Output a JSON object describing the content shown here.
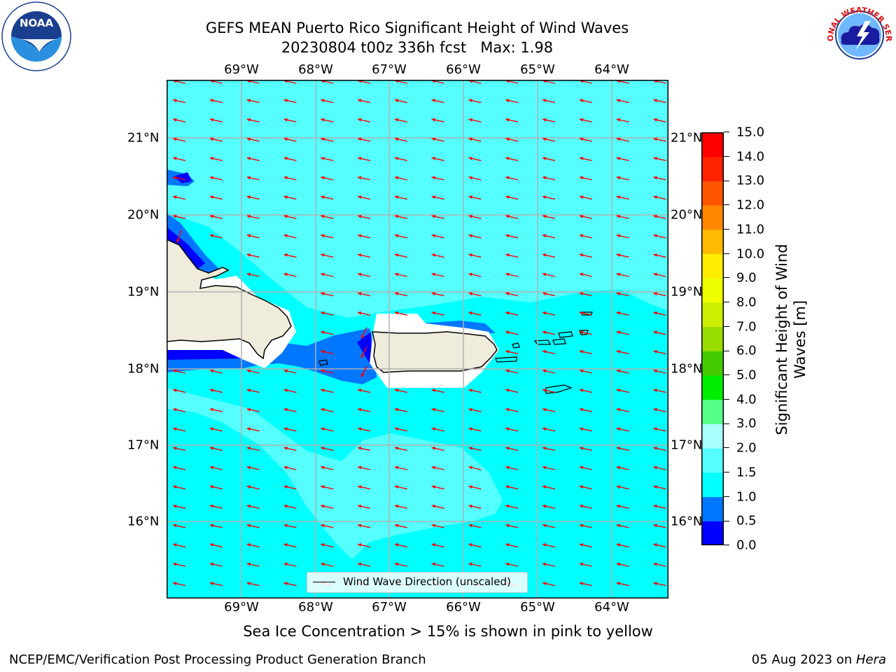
{
  "title": {
    "line1": "GEFS MEAN Puerto Rico Significant Height of Wind Waves",
    "line2": "20230804 t00z 336h fcst   Max: 1.98"
  },
  "logos": {
    "left": {
      "icon": "noaa-logo",
      "text": "NOAA"
    },
    "right": {
      "icon": "national-weather-service-logo",
      "text": "NATIONAL WEATHER SERVICE"
    }
  },
  "map": {
    "lon_ticks": [
      "69°W",
      "68°W",
      "67°W",
      "66°W",
      "65°W",
      "64°W"
    ],
    "lat_ticks": [
      "21°N",
      "20°N",
      "19°N",
      "18°N",
      "17°N",
      "16°N"
    ],
    "ocean_color": "#00ffff",
    "land_color": "#efecdc",
    "arrow_color": "#ff0000",
    "legend_label": "Wind Wave Direction (unscaled)"
  },
  "colorbar": {
    "label": "Significant Height of Wind Waves [m]",
    "label_line1": "Significant Height of Wind",
    "label_line2": "Waves [m]",
    "ticks": [
      "0.0",
      "0.5",
      "1.0",
      "1.5",
      "2.0",
      "3.0",
      "4.0",
      "5.0",
      "6.0",
      "7.0",
      "8.0",
      "9.0",
      "10.0",
      "11.0",
      "12.0",
      "13.0",
      "14.0",
      "15.0"
    ],
    "colors": [
      "#0000ff",
      "#0077ff",
      "#00ffff",
      "#55ffff",
      "#aaffff",
      "#55ff88",
      "#00ee00",
      "#44cc00",
      "#99dd00",
      "#ccee00",
      "#eeff00",
      "#ffee00",
      "#ffbb00",
      "#ff8800",
      "#ff5500",
      "#ff2200",
      "#ff0000"
    ]
  },
  "footnote": "Sea Ice Concentration > 15% is shown in pink to yellow",
  "footer": {
    "left": "NCEP/EMC/Verification Post Processing Product Generation Branch",
    "date": "05 Aug 2023 on ",
    "host": "Hera"
  }
}
